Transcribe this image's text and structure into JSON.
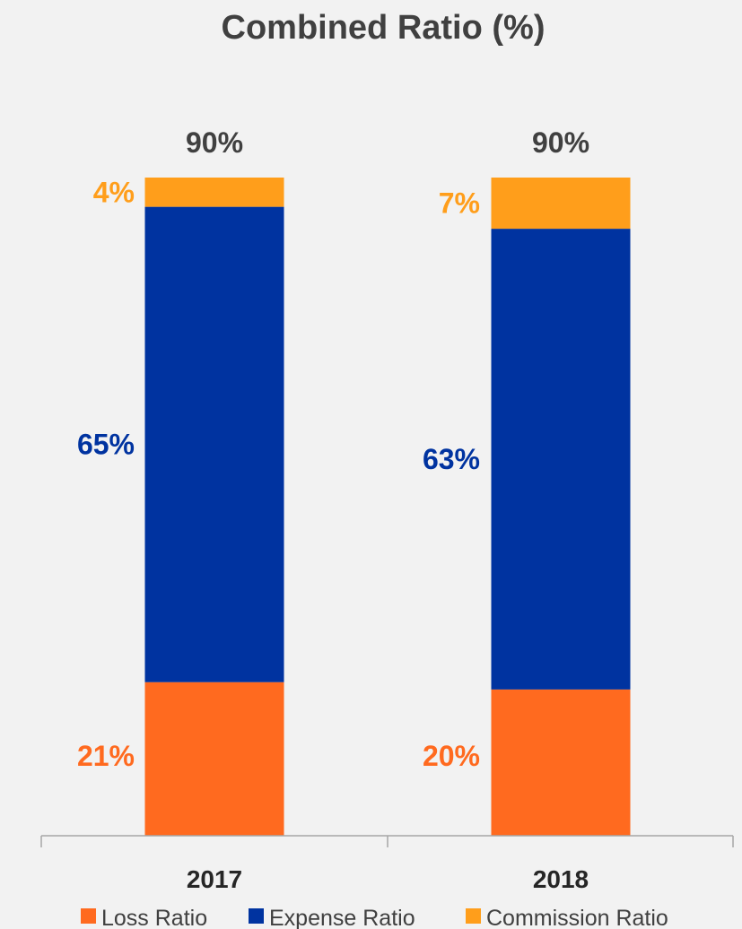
{
  "chart_data": {
    "type": "bar",
    "stacked": true,
    "title": "Combined Ratio (%)",
    "categories": [
      "2017",
      "2018"
    ],
    "series": [
      {
        "name": "Loss Ratio",
        "color": "#ff6a1f",
        "values": [
          21,
          20
        ],
        "labels": [
          "21%",
          "20%"
        ]
      },
      {
        "name": "Expense Ratio",
        "color": "#0033a0",
        "values": [
          65,
          63
        ],
        "labels": [
          "65%",
          "63%"
        ]
      },
      {
        "name": "Commission Ratio",
        "color": "#ff9e1b",
        "values": [
          4,
          7
        ],
        "labels": [
          "4%",
          "7%"
        ]
      }
    ],
    "totals": [
      "90%",
      "90%"
    ],
    "legend_position": "bottom",
    "grid": false
  }
}
